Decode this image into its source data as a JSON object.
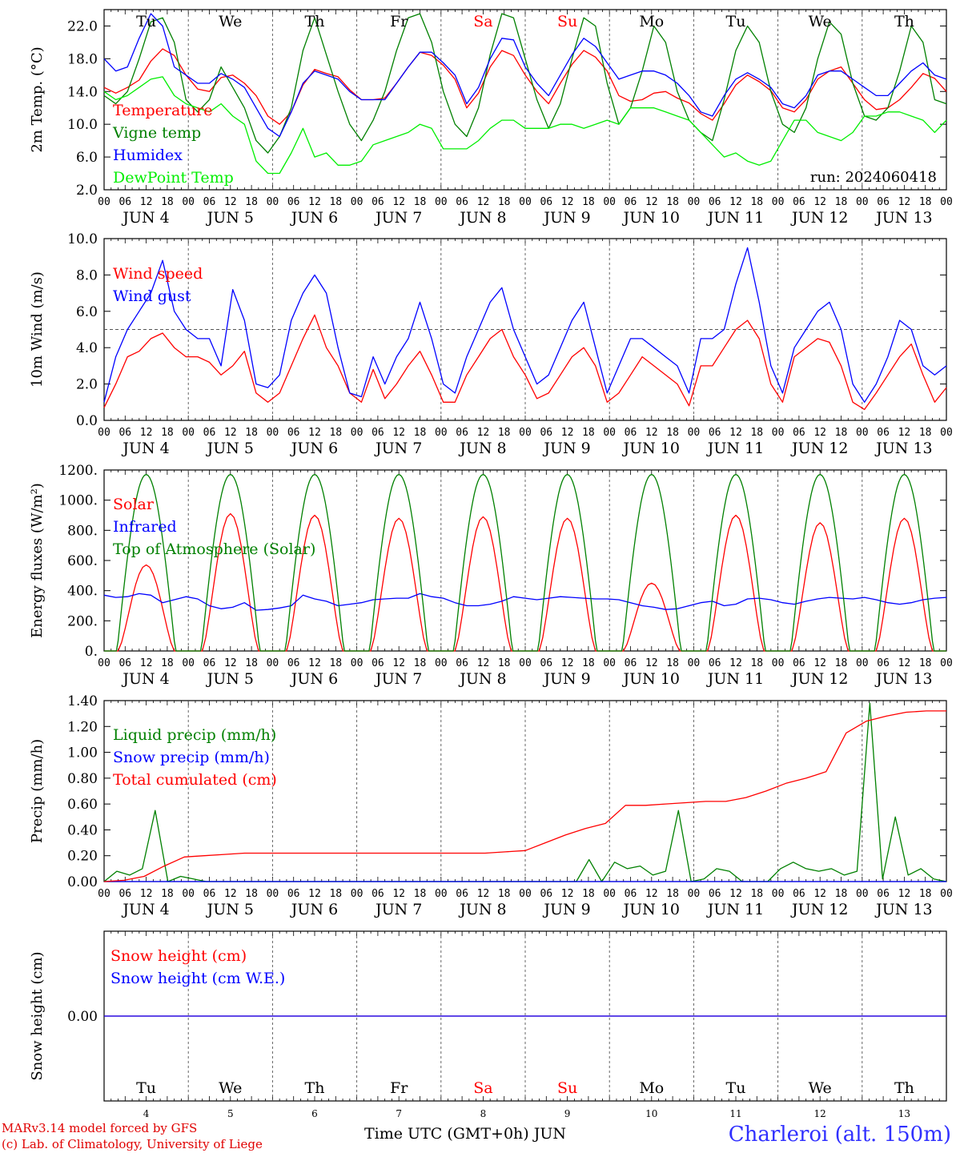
{
  "chart_data": [
    {
      "type": "line",
      "ylabel": "2m Temp. (°C)",
      "ylim": [
        2,
        24
      ],
      "yticks": [
        "2.0",
        "6.0",
        "10.0",
        "14.0",
        "18.0",
        "22.0"
      ],
      "annotation": "run: 2024060418",
      "reference_line": null,
      "series": [
        {
          "name": "Temperature",
          "color": "#ff0000",
          "values": [
            14.5,
            13.8,
            14.5,
            15.4,
            17.7,
            19.2,
            18.4,
            16.0,
            14.3,
            14.0,
            15.7,
            16.0,
            15.0,
            13.5,
            11.0,
            10.0,
            11.5,
            14.8,
            16.7,
            16.2,
            15.8,
            14.2,
            13.0,
            13.0,
            13.2,
            15.0,
            17.0,
            18.8,
            18.4,
            17.2,
            15.5,
            12.0,
            13.8,
            17.0,
            19.0,
            18.4,
            16.0,
            14.0,
            12.5,
            15.0,
            17.3,
            19.0,
            18.2,
            16.5,
            13.5,
            12.8,
            13.0,
            13.8,
            14.0,
            13.2,
            12.6,
            11.3,
            10.5,
            12.5,
            14.8,
            16.0,
            15.2,
            14.1,
            12.0,
            11.5,
            13.0,
            15.5,
            16.5,
            17.0,
            15.0,
            13.0,
            11.8,
            12.0,
            13.0,
            14.5,
            16.2,
            15.6,
            14.0
          ]
        },
        {
          "name": "Vigne temp",
          "color": "#008000",
          "values": [
            13.5,
            12.5,
            14.0,
            18.0,
            22.5,
            23.0,
            20.0,
            13.0,
            11.5,
            13.0,
            17.0,
            14.5,
            12.0,
            8.0,
            6.5,
            8.5,
            12.0,
            19.0,
            23.0,
            18.5,
            14.0,
            10.0,
            8.0,
            10.5,
            14.0,
            19.0,
            23.0,
            23.5,
            20.0,
            14.0,
            10.0,
            8.5,
            12.0,
            18.5,
            23.5,
            23.0,
            18.0,
            13.0,
            9.5,
            12.5,
            18.0,
            23.0,
            22.0,
            15.0,
            10.0,
            12.0,
            16.5,
            22.0,
            20.0,
            14.0,
            10.5,
            9.0,
            8.0,
            13.0,
            19.0,
            22.0,
            20.0,
            14.0,
            10.0,
            9.0,
            12.0,
            18.0,
            22.5,
            21.0,
            15.0,
            11.0,
            10.5,
            12.0,
            16.5,
            22.0,
            20.0,
            13.0,
            12.5
          ]
        },
        {
          "name": "Humidex",
          "color": "#0000ff",
          "values": [
            18.0,
            16.5,
            17.0,
            20.5,
            23.5,
            22.0,
            17.0,
            16.0,
            15.0,
            15.0,
            16.2,
            15.5,
            14.5,
            12.0,
            9.5,
            8.5,
            11.5,
            15.0,
            16.5,
            16.0,
            15.5,
            14.0,
            13.0,
            13.0,
            13.0,
            15.0,
            17.0,
            18.8,
            18.8,
            17.5,
            16.0,
            12.5,
            14.5,
            18.0,
            20.5,
            20.3,
            17.0,
            15.0,
            13.5,
            16.0,
            18.5,
            20.5,
            19.5,
            17.5,
            15.5,
            16.0,
            16.5,
            16.5,
            16.0,
            15.0,
            13.5,
            11.5,
            11.0,
            13.5,
            15.5,
            16.3,
            15.5,
            14.5,
            12.5,
            12.0,
            13.5,
            16.0,
            16.5,
            16.5,
            15.5,
            14.5,
            13.5,
            13.5,
            15.0,
            16.5,
            17.5,
            16.0,
            15.5
          ]
        },
        {
          "name": "DewPoint Temp",
          "color": "#00ee00",
          "values": [
            14.0,
            13.0,
            13.5,
            14.5,
            15.5,
            15.8,
            13.5,
            12.5,
            12.0,
            11.5,
            12.5,
            11.0,
            10.0,
            5.5,
            4.0,
            4.0,
            6.5,
            9.5,
            6.0,
            6.5,
            5.0,
            5.0,
            5.5,
            7.5,
            8.0,
            8.5,
            9.0,
            10.0,
            9.5,
            7.0,
            7.0,
            7.0,
            8.0,
            9.5,
            10.5,
            10.5,
            9.5,
            9.5,
            9.5,
            10.0,
            10.0,
            9.5,
            10.0,
            10.5,
            10.0,
            12.0,
            12.0,
            12.0,
            11.5,
            11.0,
            10.5,
            9.0,
            7.5,
            6.0,
            6.5,
            5.5,
            5.0,
            5.5,
            8.0,
            10.5,
            10.5,
            9.0,
            8.5,
            8.0,
            9.0,
            11.0,
            11.0,
            11.5,
            11.5,
            11.0,
            10.5,
            9.0,
            10.5
          ]
        }
      ]
    },
    {
      "type": "line",
      "ylabel": "10m Wind (m/s)",
      "ylim": [
        0,
        10
      ],
      "yticks": [
        "0.0",
        "2.0",
        "4.0",
        "6.0",
        "8.0",
        "10.0"
      ],
      "reference_line": 5,
      "series": [
        {
          "name": "Wind speed",
          "color": "#ff0000",
          "values": [
            0.7,
            2.0,
            3.5,
            3.8,
            4.5,
            4.8,
            4.0,
            3.5,
            3.5,
            3.2,
            2.5,
            3.0,
            3.8,
            1.5,
            1.0,
            1.5,
            3.0,
            4.5,
            5.8,
            4.0,
            3.0,
            1.5,
            1.0,
            2.8,
            1.2,
            2.0,
            3.0,
            3.8,
            2.5,
            1.0,
            1.0,
            2.5,
            3.5,
            4.5,
            5.0,
            3.5,
            2.5,
            1.2,
            1.5,
            2.5,
            3.5,
            4.0,
            3.0,
            1.0,
            1.5,
            2.5,
            3.5,
            3.0,
            2.5,
            2.0,
            0.8,
            3.0,
            3.0,
            4.0,
            5.0,
            5.5,
            4.5,
            2.0,
            1.0,
            3.5,
            4.0,
            4.5,
            4.3,
            3.0,
            1.0,
            0.6,
            1.5,
            2.5,
            3.5,
            4.2,
            2.5,
            1.0,
            1.8
          ]
        },
        {
          "name": "Wind gust",
          "color": "#0000ff",
          "values": [
            1.0,
            3.5,
            5.0,
            6.0,
            7.0,
            8.8,
            6.0,
            5.0,
            4.5,
            4.5,
            3.0,
            7.2,
            5.5,
            2.0,
            1.8,
            2.5,
            5.5,
            7.0,
            8.0,
            7.0,
            4.0,
            1.5,
            1.3,
            3.5,
            2.0,
            3.5,
            4.5,
            6.5,
            4.5,
            2.0,
            1.5,
            3.5,
            5.0,
            6.5,
            7.3,
            5.0,
            3.5,
            2.0,
            2.5,
            4.0,
            5.5,
            6.5,
            4.0,
            1.5,
            3.0,
            4.5,
            4.5,
            4.0,
            3.5,
            3.0,
            1.5,
            4.5,
            4.5,
            5.0,
            7.5,
            9.5,
            6.5,
            3.0,
            1.5,
            4.0,
            5.0,
            6.0,
            6.5,
            5.0,
            2.0,
            1.0,
            2.0,
            3.5,
            5.5,
            5.0,
            3.0,
            2.5,
            3.0
          ]
        }
      ]
    },
    {
      "type": "line",
      "ylabel": "Energy fluxes (W/m²)",
      "ylim": [
        0,
        1200
      ],
      "yticks": [
        "0.",
        "200.",
        "400.",
        "600.",
        "800.",
        "1000.",
        "1200."
      ],
      "reference_line": null,
      "series": [
        {
          "name": "Solar",
          "color": "#ff0000",
          "peaks": [
            570,
            910,
            900,
            880,
            890,
            880,
            450,
            900,
            850,
            880
          ]
        },
        {
          "name": "Infrared",
          "color": "#0000ff",
          "values": [
            370,
            355,
            360,
            380,
            370,
            320,
            340,
            360,
            345,
            300,
            280,
            290,
            320,
            270,
            275,
            285,
            300,
            370,
            345,
            330,
            300,
            310,
            320,
            340,
            345,
            350,
            350,
            380,
            360,
            350,
            320,
            300,
            300,
            310,
            330,
            360,
            350,
            340,
            350,
            360,
            355,
            350,
            345,
            345,
            340,
            320,
            300,
            290,
            275,
            280,
            300,
            320,
            330,
            300,
            310,
            345,
            350,
            340,
            320,
            310,
            330,
            345,
            355,
            350,
            345,
            355,
            340,
            320,
            310,
            320,
            340,
            350,
            355
          ]
        },
        {
          "name": "Top of Atmosphere (Solar)",
          "color": "#008000",
          "peak": 1170
        }
      ]
    },
    {
      "type": "line",
      "ylabel": "Precip (mm/h)",
      "ylim": [
        0,
        1.4
      ],
      "yticks": [
        "0.00",
        "0.20",
        "0.40",
        "0.60",
        "0.80",
        "1.00",
        "1.20",
        "1.40"
      ],
      "reference_line": null,
      "series": [
        {
          "name": "Liquid precip (mm/h)",
          "color": "#008000",
          "values": [
            0,
            0.08,
            0.05,
            0.1,
            0.55,
            0,
            0.04,
            0.02,
            0,
            0,
            0,
            0,
            0,
            0,
            0,
            0,
            0,
            0,
            0,
            0,
            0,
            0,
            0,
            0,
            0,
            0,
            0,
            0,
            0,
            0,
            0,
            0,
            0,
            0,
            0,
            0,
            0,
            0,
            0.17,
            0,
            0.15,
            0.1,
            0.12,
            0.05,
            0.08,
            0.55,
            0,
            0.02,
            0.1,
            0.08,
            0,
            0,
            0,
            0.1,
            0.15,
            0.1,
            0.08,
            0.1,
            0.05,
            0.08,
            1.38,
            0.02,
            0.5,
            0.05,
            0.1,
            0.02,
            0
          ]
        },
        {
          "name": "Snow precip (mm/h)",
          "color": "#0000ff",
          "values": [
            0
          ]
        },
        {
          "name": "Total cumulated (cm)",
          "color": "#ff0000",
          "values": [
            0,
            0.01,
            0.04,
            0.12,
            0.19,
            0.2,
            0.21,
            0.22,
            0.22,
            0.22,
            0.22,
            0.22,
            0.22,
            0.22,
            0.22,
            0.22,
            0.22,
            0.22,
            0.22,
            0.22,
            0.23,
            0.24,
            0.3,
            0.36,
            0.41,
            0.45,
            0.59,
            0.59,
            0.6,
            0.61,
            0.62,
            0.62,
            0.65,
            0.7,
            0.76,
            0.8,
            0.85,
            1.15,
            1.24,
            1.28,
            1.31,
            1.32,
            1.32
          ]
        }
      ]
    },
    {
      "type": "line",
      "ylabel": "Snow height (cm)",
      "ylim": [
        -1,
        1
      ],
      "yticks": [
        "0.00"
      ],
      "reference_line": null,
      "series": [
        {
          "name": "Snow height (cm)",
          "color": "#ff0000",
          "values": [
            0
          ]
        },
        {
          "name": "Snow height (cm W.E.)",
          "color": "#0000ff",
          "values": [
            0
          ]
        }
      ]
    }
  ],
  "x_axis": {
    "hour_labels": [
      "00",
      "06",
      "12",
      "18"
    ],
    "dates": [
      "JUN  4",
      "JUN  5",
      "JUN  6",
      "JUN  7",
      "JUN  8",
      "JUN  9",
      "JUN 10",
      "JUN 11",
      "JUN 12",
      "JUN 13"
    ],
    "weekdays": [
      "Tu",
      "We",
      "Th",
      "Fr",
      "Sa",
      "Su",
      "Mo",
      "Tu",
      "We",
      "Th"
    ],
    "weekend_flags": [
      false,
      false,
      false,
      false,
      true,
      true,
      false,
      false,
      false,
      false
    ],
    "day_numbers": [
      "4",
      "5",
      "6",
      "7",
      "8",
      "9",
      "10",
      "11",
      "12",
      "13"
    ],
    "final_hour": "00"
  },
  "colors": {
    "weekday": "#000000",
    "weekend": "#ff0000",
    "grid": "#555555"
  },
  "footer": {
    "credit1": "MARv3.14 model forced by GFS",
    "credit2": "(c) Lab. of Climatology, University of Liege",
    "xlabel": "Time UTC (GMT+0h) JUN",
    "station": "Charleroi (alt. 150m)"
  }
}
